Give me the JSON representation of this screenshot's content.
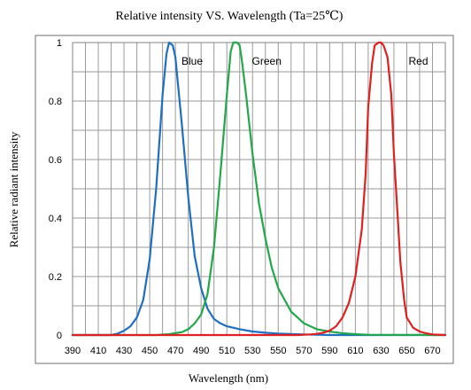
{
  "chart_data": {
    "type": "line",
    "title": "Relative intensity VS. Wavelength (Ta=25℃)",
    "xlabel": "Wavelength (nm)",
    "ylabel": "Relative radiant intensity",
    "xlim": [
      390,
      680
    ],
    "ylim": [
      0,
      1
    ],
    "x_ticks": [
      "390",
      "410",
      "430",
      "450",
      "470",
      "490",
      "510",
      "530",
      "550",
      "570",
      "590",
      "610",
      "630",
      "650",
      "670"
    ],
    "y_ticks": [
      "0",
      "0.2",
      "0.4",
      "0.6",
      "0.8",
      "1"
    ],
    "grid": true,
    "legend": "none",
    "annotations": [
      "Blue",
      "Green",
      "Red"
    ],
    "series": [
      {
        "name": "Blue",
        "color": "#1f6fc1",
        "x": [
          390,
          420,
          425,
          430,
          435,
          440,
          445,
          450,
          455,
          460,
          463,
          465,
          468,
          470,
          475,
          480,
          485,
          490,
          495,
          500,
          505,
          510,
          520,
          530,
          540,
          550,
          570,
          590,
          610,
          640,
          680
        ],
        "y": [
          0,
          0,
          0.005,
          0.015,
          0.03,
          0.06,
          0.12,
          0.26,
          0.5,
          0.82,
          0.96,
          1.0,
          0.99,
          0.95,
          0.72,
          0.47,
          0.27,
          0.16,
          0.09,
          0.055,
          0.04,
          0.03,
          0.02,
          0.012,
          0.008,
          0.005,
          0.002,
          0,
          0,
          0,
          0
        ]
      },
      {
        "name": "Green",
        "color": "#22a84a",
        "x": [
          390,
          455,
          465,
          475,
          480,
          485,
          490,
          495,
          500,
          505,
          510,
          513,
          515,
          518,
          520,
          522,
          525,
          530,
          535,
          540,
          545,
          550,
          560,
          570,
          580,
          590,
          600,
          610,
          620,
          680
        ],
        "y": [
          0,
          0,
          0.003,
          0.01,
          0.02,
          0.04,
          0.07,
          0.14,
          0.3,
          0.55,
          0.82,
          0.97,
          1.0,
          1.0,
          0.99,
          0.93,
          0.82,
          0.62,
          0.45,
          0.33,
          0.23,
          0.16,
          0.08,
          0.04,
          0.02,
          0.012,
          0.006,
          0.003,
          0.001,
          0
        ]
      },
      {
        "name": "Red",
        "color": "#e02020",
        "x": [
          390,
          565,
          575,
          580,
          585,
          590,
          595,
          600,
          605,
          610,
          615,
          618,
          620,
          623,
          625,
          628,
          630,
          632,
          635,
          638,
          640,
          643,
          645,
          648,
          650,
          655,
          660,
          665,
          670,
          680
        ],
        "y": [
          0,
          0,
          0.002,
          0.004,
          0.008,
          0.015,
          0.03,
          0.06,
          0.11,
          0.2,
          0.36,
          0.55,
          0.78,
          0.93,
          0.99,
          1.0,
          1.0,
          0.99,
          0.95,
          0.82,
          0.62,
          0.4,
          0.25,
          0.12,
          0.06,
          0.025,
          0.012,
          0.006,
          0.002,
          0
        ]
      }
    ]
  },
  "colors": {
    "grid": "#9a9a9a",
    "frame": "#6f6f6f",
    "text": "#000000",
    "background": "#ffffff"
  }
}
